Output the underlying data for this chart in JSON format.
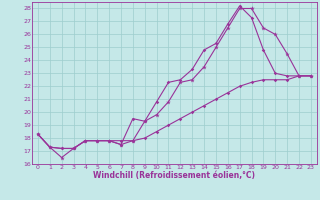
{
  "title": "",
  "xlabel": "Windchill (Refroidissement éolien,°C)",
  "ylabel": "",
  "xlim": [
    -0.5,
    23.5
  ],
  "ylim": [
    16,
    28.5
  ],
  "xticks": [
    0,
    1,
    2,
    3,
    4,
    5,
    6,
    7,
    8,
    9,
    10,
    11,
    12,
    13,
    14,
    15,
    16,
    17,
    18,
    19,
    20,
    21,
    22,
    23
  ],
  "yticks": [
    16,
    17,
    18,
    19,
    20,
    21,
    22,
    23,
    24,
    25,
    26,
    27,
    28
  ],
  "bg_color": "#c5e8e8",
  "grid_color": "#9ecece",
  "line_color": "#993399",
  "line1_y": [
    18.3,
    17.3,
    16.5,
    17.2,
    17.8,
    17.8,
    17.8,
    17.5,
    17.8,
    19.3,
    19.8,
    20.8,
    22.3,
    22.5,
    23.5,
    25.0,
    26.5,
    28.0,
    28.0,
    26.5,
    26.0,
    24.5,
    22.8,
    22.8
  ],
  "line2_y": [
    18.3,
    17.3,
    17.2,
    17.2,
    17.8,
    17.8,
    17.8,
    17.5,
    19.5,
    19.3,
    20.8,
    22.3,
    22.5,
    23.3,
    24.8,
    25.3,
    26.8,
    28.2,
    27.3,
    24.8,
    23.0,
    22.8,
    22.8,
    22.8
  ],
  "line3_y": [
    18.3,
    17.3,
    17.2,
    17.2,
    17.8,
    17.8,
    17.8,
    17.8,
    17.8,
    18.0,
    18.5,
    19.0,
    19.5,
    20.0,
    20.5,
    21.0,
    21.5,
    22.0,
    22.3,
    22.5,
    22.5,
    22.5,
    22.8,
    22.8
  ]
}
